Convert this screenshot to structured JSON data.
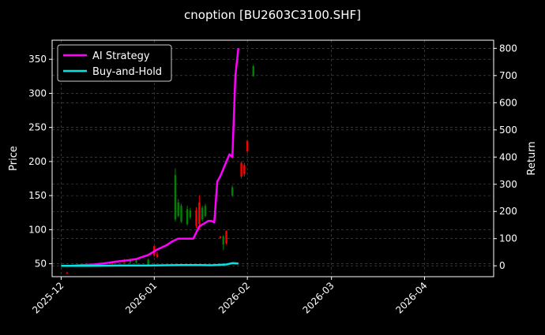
{
  "chart_data": {
    "type": "line",
    "title": "cnoption [BU2603C3100.SHF]",
    "ylabel_left": "Price",
    "ylabel_right": "Return",
    "xlim": [
      "2025-11-28",
      "2026-04-24"
    ],
    "ylim_left": [
      31,
      378
    ],
    "ylim_right": [
      -40,
      830
    ],
    "grid": true,
    "legend_position": "top-left",
    "background": "#000000",
    "x_ticks": [
      "2025-12",
      "2026-01",
      "2026-02",
      "2026-03",
      "2026-04"
    ],
    "x_tick_dates": [
      "2025-12-01",
      "2026-01-01",
      "2026-02-01",
      "2026-03-01",
      "2026-04-01"
    ],
    "y_ticks_left": [
      50,
      100,
      150,
      200,
      250,
      300,
      350
    ],
    "y_ticks_right": [
      0,
      100,
      200,
      300,
      400,
      500,
      600,
      700,
      800
    ],
    "colors": {
      "ai_strategy": "#ff00ff",
      "buy_and_hold": "#00e5e5",
      "up": "#008000",
      "down": "#ff0000"
    },
    "series": [
      {
        "name": "AI Strategy",
        "axis": "right",
        "x": [
          "2025-12-01",
          "2025-12-04",
          "2025-12-08",
          "2025-12-12",
          "2025-12-16",
          "2025-12-19",
          "2025-12-23",
          "2025-12-26",
          "2025-12-30",
          "2026-01-02",
          "2026-01-05",
          "2026-01-07",
          "2026-01-09",
          "2026-01-12",
          "2026-01-14",
          "2026-01-16",
          "2026-01-19",
          "2026-01-20",
          "2026-01-21",
          "2026-01-22",
          "2026-01-23",
          "2026-01-26",
          "2026-01-27",
          "2026-01-28",
          "2026-01-29"
        ],
        "values": [
          0,
          0,
          3,
          5,
          10,
          15,
          20,
          25,
          40,
          60,
          75,
          90,
          100,
          100,
          100,
          145,
          165,
          165,
          160,
          310,
          330,
          410,
          400,
          700,
          800
        ]
      },
      {
        "name": "Buy-and-Hold",
        "axis": "right",
        "x": [
          "2025-12-01",
          "2025-12-10",
          "2025-12-20",
          "2025-12-30",
          "2026-01-05",
          "2026-01-10",
          "2026-01-15",
          "2026-01-20",
          "2026-01-25",
          "2026-01-27",
          "2026-01-29"
        ],
        "values": [
          0,
          0,
          1,
          1,
          2,
          3,
          3,
          2,
          5,
          10,
          8
        ]
      }
    ],
    "candles": [
      {
        "x": "2025-12-03",
        "open": 37,
        "high": 38,
        "low": 35,
        "close": 36
      },
      {
        "x": "2025-12-18",
        "open": 52,
        "high": 53,
        "low": 49,
        "close": 50
      },
      {
        "x": "2025-12-22",
        "open": 55,
        "high": 57,
        "low": 51,
        "close": 52
      },
      {
        "x": "2025-12-24",
        "open": 52,
        "high": 58,
        "low": 50,
        "close": 56
      },
      {
        "x": "2025-12-26",
        "open": 52,
        "high": 58,
        "low": 50,
        "close": 56
      },
      {
        "x": "2025-12-30",
        "open": 48,
        "high": 58,
        "low": 47,
        "close": 56
      },
      {
        "x": "2026-01-01",
        "open": 76,
        "high": 76,
        "low": 60,
        "close": 62
      },
      {
        "x": "2026-01-02",
        "open": 64,
        "high": 67,
        "low": 58,
        "close": 60
      },
      {
        "x": "2026-01-08",
        "open": 115,
        "high": 190,
        "low": 112,
        "close": 180
      },
      {
        "x": "2026-01-09",
        "open": 120,
        "high": 145,
        "low": 118,
        "close": 140
      },
      {
        "x": "2026-01-10",
        "open": 112,
        "high": 138,
        "low": 110,
        "close": 135
      },
      {
        "x": "2026-01-12",
        "open": 108,
        "high": 135,
        "low": 106,
        "close": 130
      },
      {
        "x": "2026-01-13",
        "open": 118,
        "high": 132,
        "low": 115,
        "close": 128
      },
      {
        "x": "2026-01-15",
        "open": 128,
        "high": 133,
        "low": 102,
        "close": 105
      },
      {
        "x": "2026-01-16",
        "open": 140,
        "high": 150,
        "low": 100,
        "close": 108
      },
      {
        "x": "2026-01-17",
        "open": 115,
        "high": 135,
        "low": 112,
        "close": 132
      },
      {
        "x": "2026-01-18",
        "open": 120,
        "high": 138,
        "low": 118,
        "close": 135
      },
      {
        "x": "2026-01-23",
        "open": 90,
        "high": 91,
        "low": 87,
        "close": 88
      },
      {
        "x": "2026-01-24",
        "open": 78,
        "high": 92,
        "low": 70,
        "close": 90
      },
      {
        "x": "2026-01-25",
        "open": 98,
        "high": 99,
        "low": 78,
        "close": 80
      },
      {
        "x": "2026-01-27",
        "open": 150,
        "high": 165,
        "low": 148,
        "close": 162
      },
      {
        "x": "2026-01-30",
        "open": 198,
        "high": 200,
        "low": 175,
        "close": 178
      },
      {
        "x": "2026-01-31",
        "open": 195,
        "high": 198,
        "low": 178,
        "close": 182
      },
      {
        "x": "2026-02-01",
        "open": 230,
        "high": 232,
        "low": 212,
        "close": 215
      },
      {
        "x": "2026-02-03",
        "open": 325,
        "high": 342,
        "low": 325,
        "close": 340
      }
    ]
  }
}
